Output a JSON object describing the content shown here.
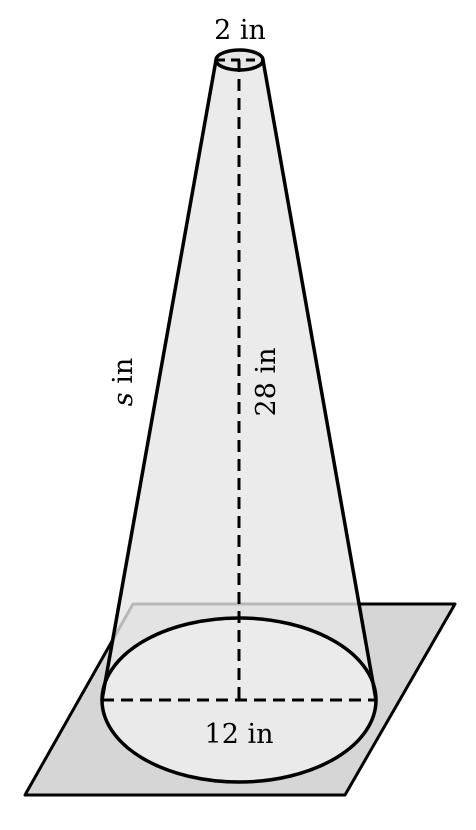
{
  "diagram": {
    "labels": {
      "top_diameter": "2 in",
      "height": "28 in",
      "slant_variable": "s",
      "slant_unit": " in",
      "bottom_diameter": "12 in"
    },
    "colors": {
      "cone_fill": "#e8e8e8",
      "plane_fill": "#d6d6d6",
      "base_fill": "#ececec",
      "stroke": "#000000"
    }
  }
}
